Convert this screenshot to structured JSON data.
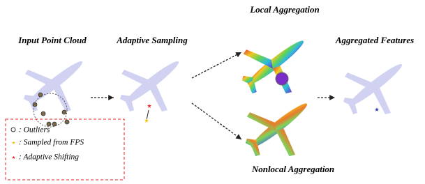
{
  "labels": {
    "input": "Input Point Cloud",
    "sampling": "Adaptive Sampling",
    "local": "Local Aggregation",
    "aggregated": "Aggregated Features",
    "nonlocal": "Nonlocal Aggregation"
  },
  "legend": [
    ": Outliers",
    ": Sampled from FPS",
    ": Adaptive Shifting"
  ]
}
